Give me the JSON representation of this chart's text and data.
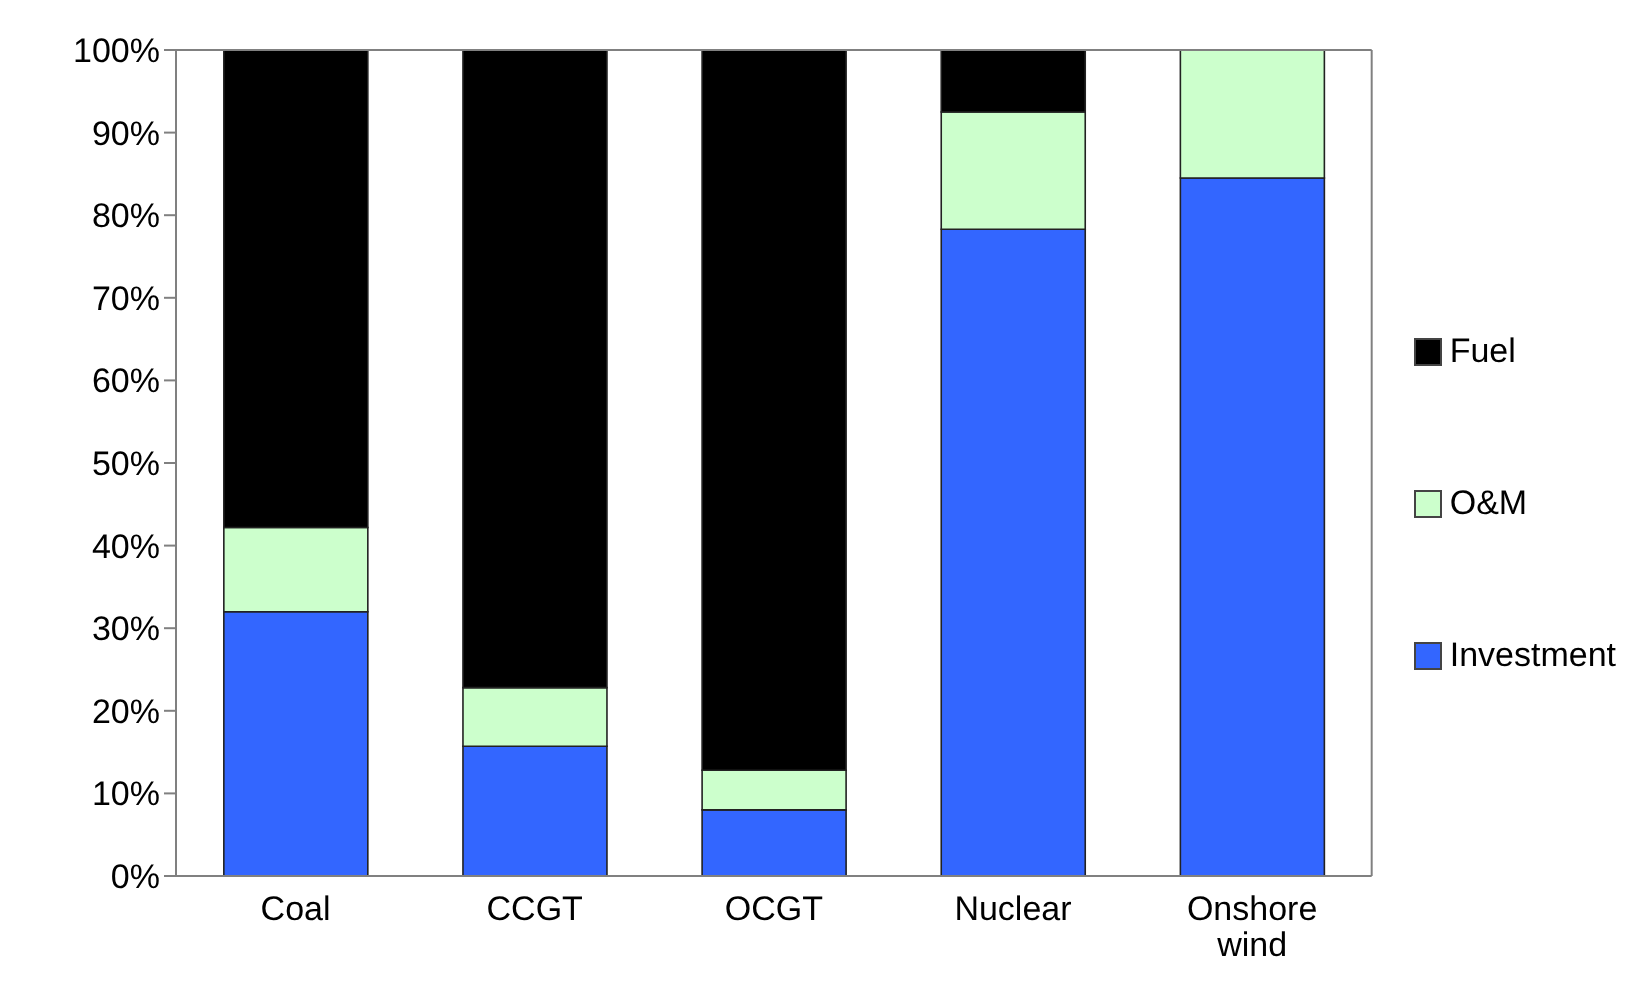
{
  "chart_data": {
    "type": "bar",
    "stacked": true,
    "categories": [
      "Coal",
      "CCGT",
      "OCGT",
      "Nuclear",
      "Onshore wind"
    ],
    "series": [
      {
        "name": "Investment",
        "color": "#3366ff",
        "values": [
          32,
          15.7,
          8,
          78.3,
          84.5
        ]
      },
      {
        "name": "O&M",
        "color": "#ccffcc",
        "values": [
          10.2,
          7.1,
          4.8,
          14.2,
          15.5
        ]
      },
      {
        "name": "Fuel",
        "color": "#000000",
        "values": [
          57.8,
          77.2,
          87.2,
          7.5,
          0
        ]
      }
    ],
    "ylim": [
      0,
      100
    ],
    "yticks": [
      {
        "value": 0,
        "label": "0%"
      },
      {
        "value": 10,
        "label": "10%"
      },
      {
        "value": 20,
        "label": "20%"
      },
      {
        "value": 30,
        "label": "30%"
      },
      {
        "value": 40,
        "label": "40%"
      },
      {
        "value": 50,
        "label": "50%"
      },
      {
        "value": 60,
        "label": "60%"
      },
      {
        "value": 70,
        "label": "70%"
      },
      {
        "value": 80,
        "label": "80%"
      },
      {
        "value": 90,
        "label": "90%"
      },
      {
        "value": 100,
        "label": "100%"
      }
    ],
    "grid": false,
    "legend": "right"
  }
}
